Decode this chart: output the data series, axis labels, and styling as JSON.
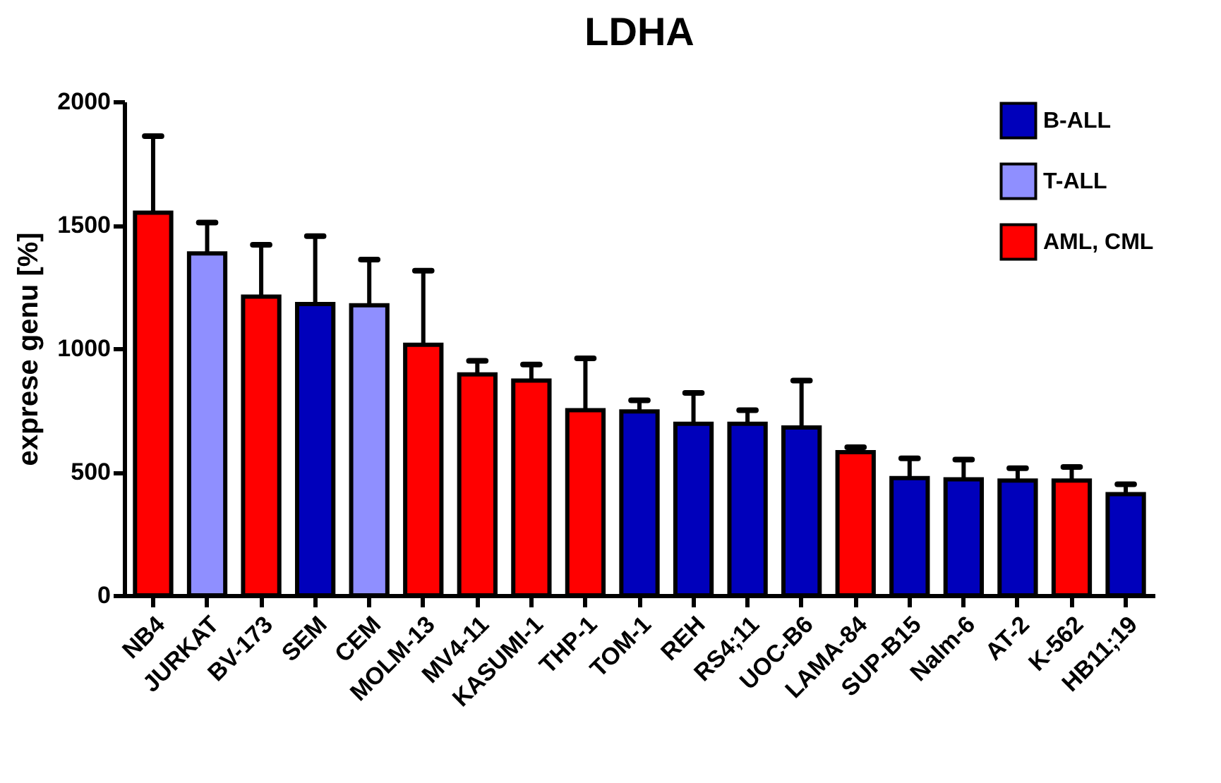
{
  "chart_data": {
    "type": "bar",
    "title": "LDHA",
    "ylabel": "exprese genu [%]",
    "categories": [
      "NB4",
      "JURKAT",
      "BV-173",
      "SEM",
      "CEM",
      "MOLM-13",
      "MV4-11",
      "KASUMI-1",
      "THP-1",
      "TOM-1",
      "REH",
      "RS4;11",
      "UOC-B6",
      "LAMA-84",
      "SUP-B15",
      "Nalm-6",
      "AT-2",
      "K-562",
      "HB11;19"
    ],
    "series": [
      {
        "name": "B-ALL",
        "color": "#0000bb",
        "values": [
          null,
          null,
          null,
          1180,
          null,
          null,
          null,
          null,
          null,
          745,
          695,
          695,
          680,
          null,
          475,
          470,
          465,
          null,
          410
        ],
        "errors": [
          null,
          null,
          null,
          [
            1180,
            1455
          ],
          null,
          null,
          null,
          null,
          null,
          [
            745,
            790
          ],
          [
            695,
            820
          ],
          [
            695,
            750
          ],
          [
            680,
            870
          ],
          null,
          [
            475,
            555
          ],
          [
            470,
            550
          ],
          [
            465,
            515
          ],
          null,
          [
            410,
            450
          ]
        ]
      },
      {
        "name": "T-ALL",
        "color": "#8f8fff",
        "values": [
          null,
          1385,
          null,
          null,
          1175,
          null,
          null,
          null,
          null,
          null,
          null,
          null,
          null,
          null,
          null,
          null,
          null,
          null,
          null
        ],
        "errors": [
          null,
          [
            1385,
            1510
          ],
          null,
          null,
          [
            1175,
            1360
          ],
          null,
          null,
          null,
          null,
          null,
          null,
          null,
          null,
          null,
          null,
          null,
          null,
          null,
          null
        ]
      },
      {
        "name": "AML, CML",
        "color": "#ff0000",
        "values": [
          1550,
          null,
          1210,
          null,
          null,
          1015,
          895,
          870,
          750,
          null,
          null,
          null,
          null,
          580,
          null,
          null,
          null,
          465,
          null
        ],
        "errors": [
          [
            1550,
            1860
          ],
          null,
          [
            1210,
            1420
          ],
          null,
          null,
          [
            1015,
            1315
          ],
          [
            895,
            950
          ],
          [
            870,
            935
          ],
          [
            750,
            960
          ],
          null,
          null,
          null,
          null,
          [
            580,
            600
          ],
          null,
          null,
          null,
          [
            465,
            520
          ],
          null
        ]
      }
    ],
    "ylim": [
      0,
      2000
    ],
    "yticks": [
      0,
      500,
      1000,
      1500,
      2000
    ],
    "legend": "top right"
  }
}
